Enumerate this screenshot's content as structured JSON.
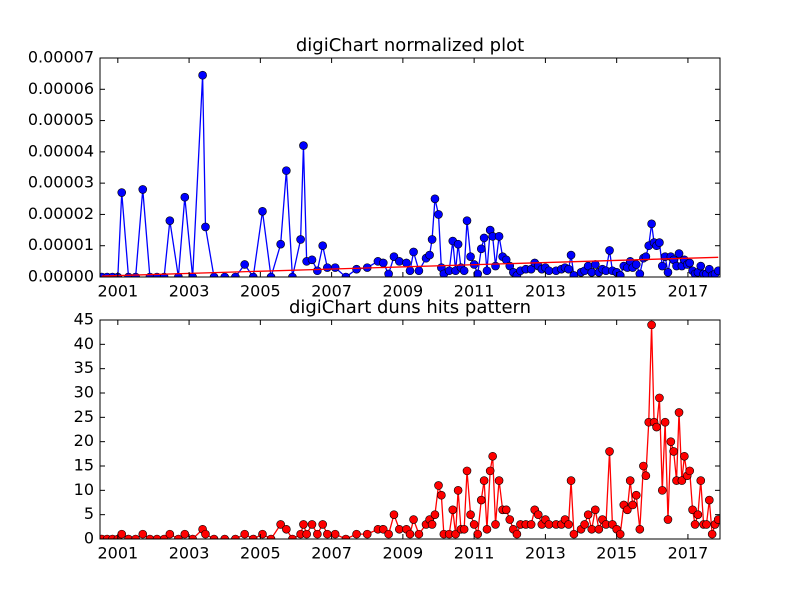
{
  "chart_data": [
    {
      "type": "line",
      "title": "digiChart normalized plot",
      "xlim": [
        2000.5,
        2017.9
      ],
      "xticks": [
        2001,
        2003,
        2005,
        2007,
        2009,
        2011,
        2013,
        2015,
        2017
      ],
      "ylim": [
        0,
        7e-05
      ],
      "yticks": [
        {
          "value": 0,
          "label": "0.00000"
        },
        {
          "value": 1e-05,
          "label": "0.00001"
        },
        {
          "value": 2e-05,
          "label": "0.00002"
        },
        {
          "value": 3e-05,
          "label": "0.00003"
        },
        {
          "value": 4e-05,
          "label": "0.00004"
        },
        {
          "value": 5e-05,
          "label": "0.00005"
        },
        {
          "value": 6e-05,
          "label": "0.00006"
        },
        {
          "value": 7e-05,
          "label": "0.00007"
        }
      ],
      "series": [
        {
          "color": "#0000ff",
          "marker": true,
          "x": [
            2000.55,
            2000.7,
            2000.85,
            2001.0,
            2001.11,
            2001.3,
            2001.5,
            2001.7,
            2001.9,
            2002.1,
            2002.3,
            2002.46,
            2002.7,
            2002.88,
            2003.1,
            2003.38,
            2003.46,
            2003.7,
            2004.0,
            2004.3,
            2004.56,
            2004.8,
            2005.06,
            2005.3,
            2005.57,
            2005.73,
            2005.9,
            2006.13,
            2006.21,
            2006.3,
            2006.45,
            2006.6,
            2006.75,
            2006.88,
            2007.1,
            2007.4,
            2007.7,
            2008.0,
            2008.3,
            2008.45,
            2008.6,
            2008.75,
            2008.9,
            2009.1,
            2009.2,
            2009.3,
            2009.45,
            2009.65,
            2009.75,
            2009.82,
            2009.9,
            2010.0,
            2010.08,
            2010.15,
            2010.3,
            2010.4,
            2010.48,
            2010.55,
            2010.63,
            2010.72,
            2010.8,
            2010.9,
            2011.0,
            2011.1,
            2011.2,
            2011.28,
            2011.36,
            2011.45,
            2011.52,
            2011.6,
            2011.7,
            2011.8,
            2011.9,
            2012.0,
            2012.1,
            2012.2,
            2012.3,
            2012.45,
            2012.6,
            2012.7,
            2012.8,
            2012.9,
            2013.0,
            2013.1,
            2013.3,
            2013.45,
            2013.55,
            2013.65,
            2013.72,
            2013.8,
            2014.0,
            2014.1,
            2014.2,
            2014.3,
            2014.4,
            2014.5,
            2014.6,
            2014.7,
            2014.8,
            2014.88,
            2015.0,
            2015.1,
            2015.2,
            2015.3,
            2015.38,
            2015.45,
            2015.55,
            2015.65,
            2015.75,
            2015.82,
            2015.9,
            2015.98,
            2016.05,
            2016.12,
            2016.2,
            2016.28,
            2016.36,
            2016.44,
            2016.52,
            2016.6,
            2016.68,
            2016.75,
            2016.83,
            2016.9,
            2016.98,
            2017.05,
            2017.13,
            2017.2,
            2017.28,
            2017.36,
            2017.44,
            2017.52,
            2017.6,
            2017.68,
            2017.76,
            2017.85
          ],
          "values": [
            0,
            0,
            0,
            0,
            2.7e-05,
            0,
            0,
            2.8e-05,
            0,
            0,
            0,
            1.8e-05,
            0,
            2.55e-05,
            0,
            6.45e-05,
            1.6e-05,
            0,
            0,
            0,
            4e-06,
            0,
            2.1e-05,
            0,
            1.05e-05,
            3.4e-05,
            0,
            1.2e-05,
            4.2e-05,
            5e-06,
            5.5e-06,
            2e-06,
            1e-05,
            3e-06,
            3e-06,
            0,
            2.5e-06,
            3e-06,
            5e-06,
            4.5e-06,
            1e-06,
            6.5e-06,
            5e-06,
            4.5e-06,
            2e-06,
            8e-06,
            2e-06,
            6e-06,
            7e-06,
            1.2e-05,
            2.5e-05,
            2e-05,
            3e-06,
            1e-06,
            2e-06,
            1.15e-05,
            2e-06,
            1.05e-05,
            3e-06,
            2e-06,
            1.8e-05,
            6.5e-06,
            4e-06,
            1e-06,
            9e-06,
            1.25e-05,
            2e-06,
            1.5e-05,
            1.3e-05,
            3.5e-06,
            1.3e-05,
            6.5e-06,
            5.5e-06,
            3.5e-06,
            1.5e-06,
            5e-07,
            2e-06,
            2.5e-06,
            2.5e-06,
            4.5e-06,
            3.5e-06,
            2.5e-06,
            3e-06,
            2e-06,
            2e-06,
            2.5e-06,
            3e-06,
            2.5e-06,
            7e-06,
            5e-07,
            1.5e-06,
            2e-06,
            3.5e-06,
            1.5e-06,
            4e-06,
            1.5e-06,
            2.5e-06,
            2e-06,
            8.5e-06,
            2e-06,
            1.5e-06,
            5e-07,
            3.5e-06,
            3e-06,
            5e-06,
            3e-06,
            4e-06,
            1e-06,
            6e-06,
            6.5e-06,
            1e-05,
            1.7e-05,
            1.1e-05,
            1e-05,
            1.1e-05,
            3.5e-06,
            6.5e-06,
            1.5e-06,
            6.5e-06,
            5.5e-06,
            3.5e-06,
            7.5e-06,
            3.5e-06,
            5.5e-06,
            4e-06,
            4.5e-06,
            2e-06,
            1e-06,
            1.5e-06,
            3.5e-06,
            1e-06,
            1e-06,
            2.5e-06,
            5e-07,
            1e-06,
            2e-06
          ]
        },
        {
          "color": "#ff0000",
          "marker": false,
          "x": [
            2000.55,
            2017.85
          ],
          "values": [
            3e-07,
            6.3e-06
          ]
        }
      ]
    },
    {
      "type": "line",
      "title": "digiChart duns hits pattern",
      "xlim": [
        2000.5,
        2017.9
      ],
      "xticks": [
        2001,
        2003,
        2005,
        2007,
        2009,
        2011,
        2013,
        2015,
        2017
      ],
      "ylim": [
        0,
        45
      ],
      "yticks": [
        0,
        5,
        10,
        15,
        20,
        25,
        30,
        35,
        40,
        45
      ],
      "series": [
        {
          "color": "#ff0000",
          "marker": true,
          "x": [
            2000.55,
            2000.7,
            2000.85,
            2001.0,
            2001.11,
            2001.3,
            2001.5,
            2001.7,
            2001.9,
            2002.1,
            2002.3,
            2002.46,
            2002.7,
            2002.88,
            2003.1,
            2003.38,
            2003.46,
            2003.7,
            2004.0,
            2004.3,
            2004.56,
            2004.8,
            2005.06,
            2005.3,
            2005.57,
            2005.73,
            2005.9,
            2006.13,
            2006.21,
            2006.3,
            2006.45,
            2006.6,
            2006.75,
            2006.88,
            2007.1,
            2007.4,
            2007.7,
            2008.0,
            2008.3,
            2008.45,
            2008.6,
            2008.75,
            2008.9,
            2009.1,
            2009.2,
            2009.3,
            2009.45,
            2009.65,
            2009.75,
            2009.82,
            2009.9,
            2010.0,
            2010.08,
            2010.15,
            2010.3,
            2010.4,
            2010.48,
            2010.55,
            2010.63,
            2010.72,
            2010.8,
            2010.9,
            2011.0,
            2011.1,
            2011.2,
            2011.28,
            2011.36,
            2011.45,
            2011.52,
            2011.6,
            2011.7,
            2011.8,
            2011.9,
            2012.0,
            2012.1,
            2012.2,
            2012.3,
            2012.45,
            2012.6,
            2012.7,
            2012.8,
            2012.9,
            2013.0,
            2013.1,
            2013.3,
            2013.45,
            2013.55,
            2013.65,
            2013.72,
            2013.8,
            2014.0,
            2014.1,
            2014.2,
            2014.3,
            2014.4,
            2014.5,
            2014.6,
            2014.7,
            2014.8,
            2014.88,
            2015.0,
            2015.1,
            2015.2,
            2015.3,
            2015.38,
            2015.45,
            2015.55,
            2015.65,
            2015.75,
            2015.82,
            2015.9,
            2015.98,
            2016.05,
            2016.12,
            2016.2,
            2016.28,
            2016.36,
            2016.44,
            2016.52,
            2016.6,
            2016.68,
            2016.75,
            2016.83,
            2016.9,
            2016.98,
            2017.05,
            2017.13,
            2017.2,
            2017.28,
            2017.36,
            2017.44,
            2017.52,
            2017.6,
            2017.68,
            2017.76,
            2017.85
          ],
          "values": [
            0,
            0,
            0,
            0,
            1,
            0,
            0,
            1,
            0,
            0,
            0,
            1,
            0,
            1,
            0,
            2,
            1,
            0,
            0,
            0,
            1,
            0,
            1,
            0,
            3,
            2,
            0,
            1,
            3,
            1,
            3,
            1,
            3,
            1,
            1,
            0,
            1,
            1,
            2,
            2,
            1,
            5,
            2,
            2,
            1,
            4,
            1,
            3,
            4,
            3,
            5,
            11,
            9,
            1,
            1,
            6,
            1,
            10,
            2,
            2,
            14,
            5,
            3,
            1,
            8,
            12,
            2,
            14,
            17,
            3,
            12,
            6,
            6,
            4,
            2,
            1,
            3,
            3,
            3,
            6,
            5,
            3,
            4,
            3,
            3,
            3,
            4,
            3,
            12,
            1,
            2,
            3,
            5,
            2,
            6,
            2,
            4,
            3,
            18,
            3,
            2,
            1,
            7,
            6,
            12,
            7,
            9,
            2,
            15,
            13,
            24,
            44,
            24,
            23,
            29,
            10,
            24,
            4,
            20,
            18,
            12,
            26,
            12,
            17,
            13,
            14,
            6,
            3,
            5,
            12,
            3,
            3,
            8,
            1,
            3,
            4
          ]
        }
      ]
    }
  ]
}
